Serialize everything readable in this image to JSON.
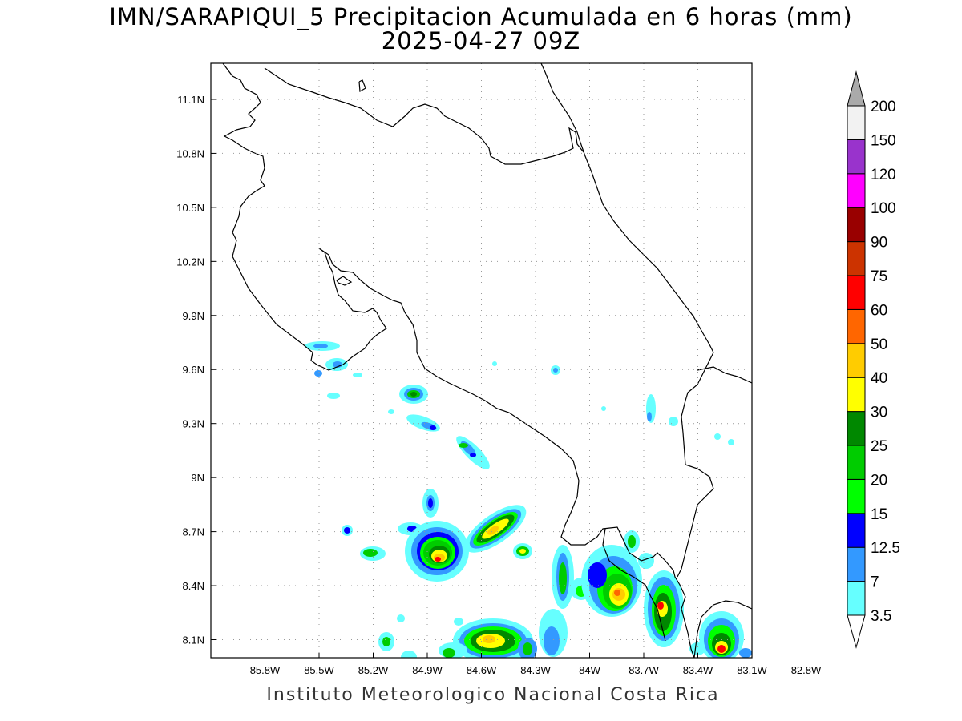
{
  "header": {
    "title": "IMN/SARAPIQUI_5 Precipitacion Acumulada en 6 horas (mm)",
    "subtitle": "2025-04-27 09Z"
  },
  "footer": {
    "credit": "Instituto Meteorologico Nacional Costa Rica"
  },
  "map": {
    "lon_range": [
      -86.1,
      -83.1
    ],
    "lat_range": [
      8.0,
      11.3
    ],
    "lon_ticks": [
      "85.8W",
      "85.5W",
      "85.2W",
      "84.9W",
      "84.6W",
      "84.3W",
      "84W",
      "83.7W",
      "83.4W",
      "83.1W",
      "82.8W"
    ],
    "lat_ticks": [
      "11.1N",
      "10.8N",
      "10.5N",
      "10.2N",
      "9.9N",
      "9.6N",
      "9.3N",
      "9N",
      "8.7N",
      "8.4N",
      "8.1N"
    ],
    "grid": "dotted"
  },
  "colorbar": {
    "levels": [
      "3.5",
      "7",
      "12.5",
      "15",
      "20",
      "25",
      "30",
      "40",
      "50",
      "60",
      "75",
      "90",
      "100",
      "120",
      "150",
      "200"
    ],
    "colors": [
      "#66ffff",
      "#3399ff",
      "#0000ff",
      "#00ff00",
      "#00cc00",
      "#008800",
      "#ffff00",
      "#ffcc00",
      "#ff6600",
      "#ff0000",
      "#cc3300",
      "#990000",
      "#ff00ff",
      "#9933cc",
      "#f2f2f2",
      "#aaaaaa"
    ]
  }
}
